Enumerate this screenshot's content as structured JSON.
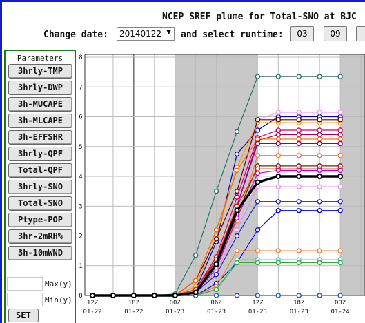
{
  "title": "NCEP SREF plume for Total-SNO at BJC",
  "controls": {
    "change_date_label": "Change date:",
    "date_value": "20140122",
    "select_runtime_label": "and select runtime:",
    "runtimes": [
      "03",
      "09",
      ""
    ]
  },
  "parameters": {
    "header": "Parameters",
    "buttons": [
      "3hrly-TMP",
      "3hrly-DWP",
      "3h-MUCAPE",
      "3h-MLCAPE",
      "3h-EFFSHR",
      "3hrly-QPF",
      "Total-QPF",
      "3hrly-SNO",
      "Total-SNO",
      "Ptype-POP",
      "3hr-2mRH%",
      "3h-10mWND"
    ],
    "max_label": "Max(y)",
    "min_label": "Min(y)",
    "max_value": "",
    "min_value": "",
    "set_label": "SET"
  },
  "chart_data": {
    "type": "line",
    "ylim": [
      0,
      8
    ],
    "yticks": [
      "0",
      "1",
      "2",
      "3",
      "4",
      "5",
      "6",
      "7",
      "8"
    ],
    "x_index_range": [
      0,
      13.2
    ],
    "xticks": [
      {
        "i": 0,
        "time": "12Z",
        "date": "01-22"
      },
      {
        "i": 2,
        "time": "18Z",
        "date": "01-22"
      },
      {
        "i": 4,
        "time": "00Z",
        "date": "01-23"
      },
      {
        "i": 6,
        "time": "06Z",
        "date": "01-23"
      },
      {
        "i": 8,
        "time": "12Z",
        "date": "01-23"
      },
      {
        "i": 10,
        "time": "18Z",
        "date": "01-23"
      },
      {
        "i": 12,
        "time": "00Z",
        "date": "01-24"
      }
    ],
    "night_bands": [
      [
        4,
        8
      ],
      [
        12,
        13.2
      ]
    ],
    "series": [
      {
        "color": "#2f6f6a",
        "values": [
          0,
          0,
          0,
          0,
          0.05,
          1.35,
          3.5,
          5.5,
          7.35,
          7.35,
          7.35,
          7.35,
          7.35
        ]
      },
      {
        "color": "#0000aa",
        "values": [
          0,
          0,
          0,
          0,
          0,
          0.2,
          1.8,
          4.75,
          5.55,
          6.0,
          6.0,
          6.0,
          6.0
        ]
      },
      {
        "color": "#ff99ff",
        "values": [
          0,
          0,
          0,
          0,
          0,
          0.2,
          1.0,
          2.7,
          5.9,
          6.15,
          6.15,
          6.15,
          6.15
        ]
      },
      {
        "color": "#ff9900",
        "values": [
          0,
          0,
          0,
          0,
          0,
          0.3,
          2.0,
          4.3,
          5.8,
          5.8,
          5.8,
          5.8,
          5.8
        ]
      },
      {
        "color": "#660000",
        "values": [
          0,
          0,
          0,
          0,
          0,
          0.5,
          1.9,
          3.5,
          5.9,
          5.9,
          5.9,
          5.9,
          5.9
        ]
      },
      {
        "color": "#cc0066",
        "values": [
          0,
          0,
          0,
          0,
          0,
          0.2,
          1.3,
          3.3,
          5.3,
          5.55,
          5.55,
          5.55,
          5.55
        ]
      },
      {
        "color": "#aa0055",
        "values": [
          0,
          0,
          0,
          0,
          0,
          0.1,
          1.2,
          3.0,
          5.2,
          5.4,
          5.4,
          5.4,
          5.4
        ]
      },
      {
        "color": "#ff6600",
        "values": [
          0,
          0,
          0,
          0,
          0,
          0.5,
          2.2,
          4.2,
          5.25,
          5.25,
          5.25,
          5.25,
          5.25
        ]
      },
      {
        "color": "#880088",
        "values": [
          0,
          0,
          0,
          0,
          0,
          0.1,
          1.1,
          3.0,
          5.1,
          5.1,
          5.1,
          5.1,
          5.1
        ]
      },
      {
        "color": "#ff7744",
        "values": [
          0,
          0,
          0,
          0,
          0,
          0.2,
          1.0,
          2.5,
          4.7,
          4.7,
          4.7,
          4.7,
          4.7
        ]
      },
      {
        "color": "#5a3300",
        "values": [
          0,
          0,
          0,
          0,
          0,
          0.1,
          1.0,
          2.7,
          4.35,
          4.35,
          4.35,
          4.35,
          4.35
        ]
      },
      {
        "color": "#dd2200",
        "values": [
          0,
          0,
          0,
          0,
          0,
          0.2,
          1.2,
          3.0,
          4.25,
          4.25,
          4.25,
          4.25,
          4.25
        ]
      },
      {
        "color": "#cc00cc",
        "values": [
          0,
          0,
          0,
          0,
          0,
          0.1,
          0.9,
          2.6,
          4.1,
          4.2,
          4.2,
          4.2,
          4.2
        ]
      },
      {
        "color": "#ee88ee",
        "values": [
          0,
          0,
          0,
          0,
          0,
          0.1,
          0.8,
          2.2,
          3.65,
          3.65,
          3.65,
          3.65,
          3.65
        ]
      },
      {
        "color": "#2222cc",
        "values": [
          0,
          0,
          0,
          0,
          0,
          0.1,
          0.7,
          2.0,
          3.15,
          3.15,
          3.15,
          3.15,
          3.15
        ]
      },
      {
        "color": "#0000ee",
        "values": [
          0,
          0,
          0,
          0,
          0,
          0,
          0.4,
          1.1,
          2.2,
          2.85,
          2.85,
          2.85,
          2.85
        ]
      },
      {
        "color": "#ff7733",
        "values": [
          0,
          0,
          0,
          0,
          0,
          0,
          0.3,
          1.5,
          1.5,
          1.5,
          1.5,
          1.5,
          1.5
        ]
      },
      {
        "color": "#44cccc",
        "values": [
          0,
          0,
          0,
          0,
          0,
          0,
          0.2,
          1.2,
          1.2,
          1.2,
          1.2,
          1.2,
          1.2
        ]
      },
      {
        "color": "#33aa33",
        "values": [
          0,
          0,
          0,
          0,
          0,
          0,
          0.2,
          1.1,
          1.1,
          1.1,
          1.1,
          1.1,
          1.1
        ]
      },
      {
        "color": "#2255cc",
        "values": [
          0,
          0,
          0,
          0,
          0,
          0,
          0,
          0,
          0,
          0,
          0,
          0,
          0
        ]
      },
      {
        "color": "#000000",
        "values": [
          0,
          0,
          0,
          0,
          0,
          0.1,
          1.05,
          2.85,
          3.8,
          4.0,
          4.0,
          4.0,
          4.0
        ],
        "bold": true
      }
    ]
  }
}
